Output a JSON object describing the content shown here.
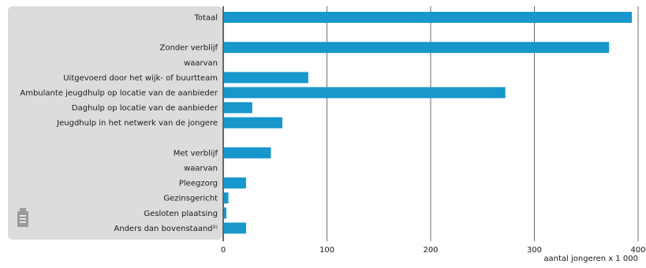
{
  "chart_data": {
    "type": "bar",
    "orientation": "horizontal",
    "categories": [
      "Totaal",
      "",
      "Zonder verblijf",
      "waarvan",
      "Uitgevoerd door het wijk- of buurtteam",
      "Ambulante jeugdhulp op locatie van de aanbieder",
      "Daghulp op locatie van de aanbieder",
      "Jeugdhulp in het netwerk van de jongere",
      "",
      "Met verblijf",
      "waarvan",
      "Pleegzorg",
      "Gezinsgericht",
      "Gesloten plaatsing",
      "Anders dan bovenstaand²⁾"
    ],
    "values": [
      394,
      null,
      372,
      null,
      82,
      272,
      28,
      57,
      null,
      46,
      null,
      22,
      5,
      3,
      22
    ],
    "xlabel": "aantal jongeren x 1 000",
    "ylabel": "",
    "xlim": [
      0,
      400
    ],
    "xticks": [
      0,
      100,
      200,
      300,
      400
    ],
    "grid": true,
    "legend": "none"
  },
  "colors": {
    "bar": "#1797cc",
    "label_panel": "#dcdcdc",
    "gridline": "#6e6e6e",
    "axis": "#333333",
    "text": "#1a1a1a"
  },
  "icons": {
    "document": "document-icon"
  }
}
